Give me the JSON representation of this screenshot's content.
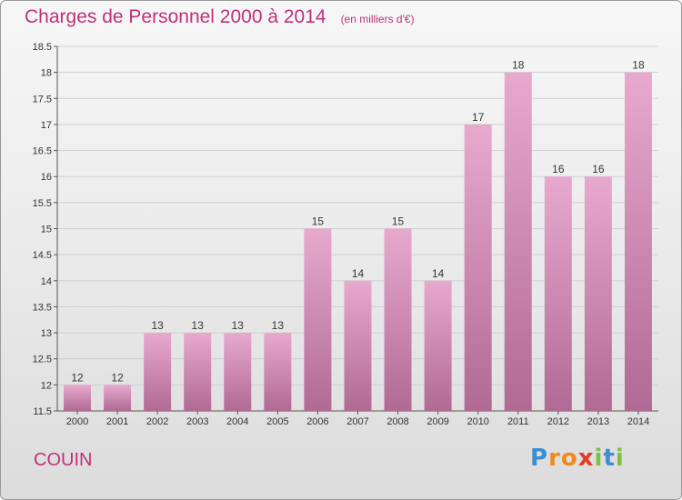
{
  "header": {
    "title": "Charges de Personnel 2000 à 2014",
    "subtitle": "(en milliers d'€)"
  },
  "footer": {
    "commune": "COUIN",
    "logo": "Proxiti"
  },
  "colors": {
    "title": "#c0307a",
    "bar_top": "#e8a9cf",
    "bar_bottom": "#b06a94"
  },
  "chart_data": {
    "type": "bar",
    "title": "Charges de Personnel 2000 à 2014",
    "subtitle": "(en milliers d'€)",
    "xlabel": "",
    "ylabel": "",
    "categories": [
      "2000",
      "2001",
      "2002",
      "2003",
      "2004",
      "2005",
      "2006",
      "2007",
      "2008",
      "2009",
      "2010",
      "2011",
      "2012",
      "2013",
      "2014"
    ],
    "values": [
      12,
      12,
      13,
      13,
      13,
      13,
      15,
      14,
      15,
      14,
      17,
      18,
      16,
      16,
      18
    ],
    "data_labels": [
      "12",
      "12",
      "13",
      "13",
      "13",
      "13",
      "15",
      "14",
      "15",
      "14",
      "17",
      "18",
      "16",
      "16",
      "18"
    ],
    "ylim": [
      11.5,
      18.5
    ],
    "yticks": [
      11.5,
      12,
      12.5,
      13,
      13.5,
      14,
      14.5,
      15,
      15.5,
      16,
      16.5,
      17,
      17.5,
      18,
      18.5
    ],
    "ytick_labels": [
      "11.5",
      "12",
      "12.5",
      "13",
      "13.5",
      "14",
      "14.5",
      "15",
      "15.5",
      "16",
      "16.5",
      "17",
      "17.5",
      "18",
      "18.5"
    ],
    "grid": true
  }
}
